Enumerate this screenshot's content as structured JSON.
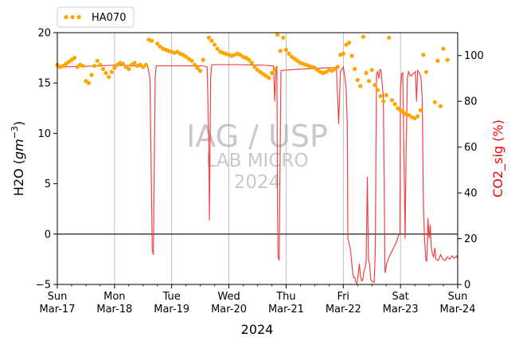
{
  "chart_data": {
    "type": "line",
    "watermark": {
      "line1": "IAG / USP",
      "line2": "LAB MICRO",
      "line3": "2024"
    },
    "xlabel": "2024",
    "x_ticks": [
      {
        "day": "Sun",
        "date": "Mar-17"
      },
      {
        "day": "Mon",
        "date": "Mar-18"
      },
      {
        "day": "Tue",
        "date": "Mar-19"
      },
      {
        "day": "Wed",
        "date": "Mar-20"
      },
      {
        "day": "Thu",
        "date": "Mar-21"
      },
      {
        "day": "Fri",
        "date": "Mar-22"
      },
      {
        "day": "Sat",
        "date": "Mar-23"
      },
      {
        "day": "Sun",
        "date": "Mar-24"
      }
    ],
    "x_range": [
      "2024-03-17",
      "2024-03-24"
    ],
    "grid": "vertical",
    "zero_line": 0,
    "left_axis": {
      "label": "H2O (gm⁻³)",
      "label_main": "H2O (",
      "label_unit": "gm",
      "label_exp": "−3",
      "label_close": ")",
      "ylim": [
        -5,
        20
      ],
      "ticks": [
        "−5",
        "0",
        "5",
        "10",
        "15",
        "20"
      ],
      "color": "#000000"
    },
    "right_axis": {
      "label": "CO2_sig (%)",
      "ylim": [
        0,
        110
      ],
      "ticks": [
        "0",
        "20",
        "40",
        "60",
        "80",
        "100"
      ],
      "color": "#ff0000"
    },
    "legend": {
      "placement": "top-left outside",
      "entries": [
        "HA070"
      ]
    },
    "series": [
      {
        "name": "HA070",
        "axis": "left",
        "style": "dots",
        "color": "#ffa500",
        "points": [
          [
            0.0,
            16.8
          ],
          [
            0.05,
            16.6
          ],
          [
            0.1,
            16.7
          ],
          [
            0.15,
            16.9
          ],
          [
            0.2,
            17.1
          ],
          [
            0.25,
            17.3
          ],
          [
            0.3,
            17.5
          ],
          [
            0.35,
            16.6
          ],
          [
            0.4,
            16.8
          ],
          [
            0.45,
            16.7
          ],
          [
            0.5,
            15.2
          ],
          [
            0.55,
            15.0
          ],
          [
            0.6,
            15.8
          ],
          [
            0.65,
            16.7
          ],
          [
            0.7,
            17.2
          ],
          [
            0.75,
            16.8
          ],
          [
            0.8,
            16.4
          ],
          [
            0.85,
            16.0
          ],
          [
            0.9,
            15.6
          ],
          [
            0.95,
            16.1
          ],
          [
            1.0,
            16.5
          ],
          [
            1.05,
            16.8
          ],
          [
            1.1,
            17.0
          ],
          [
            1.15,
            16.9
          ],
          [
            1.2,
            16.6
          ],
          [
            1.25,
            16.4
          ],
          [
            1.3,
            16.8
          ],
          [
            1.35,
            17.0
          ],
          [
            1.4,
            16.7
          ],
          [
            1.45,
            16.8
          ],
          [
            1.5,
            16.6
          ],
          [
            1.55,
            16.8
          ],
          [
            1.6,
            19.3
          ],
          [
            1.65,
            19.2
          ],
          [
            1.75,
            18.9
          ],
          [
            1.8,
            18.6
          ],
          [
            1.85,
            18.4
          ],
          [
            1.9,
            18.3
          ],
          [
            1.95,
            18.2
          ],
          [
            2.0,
            18.1
          ],
          [
            2.05,
            18.0
          ],
          [
            2.1,
            18.1
          ],
          [
            2.15,
            17.9
          ],
          [
            2.2,
            17.8
          ],
          [
            2.25,
            17.6
          ],
          [
            2.3,
            17.4
          ],
          [
            2.35,
            17.2
          ],
          [
            2.4,
            16.8
          ],
          [
            2.45,
            16.5
          ],
          [
            2.5,
            16.2
          ],
          [
            2.55,
            17.3
          ],
          [
            2.65,
            19.5
          ],
          [
            2.7,
            19.2
          ],
          [
            2.75,
            18.8
          ],
          [
            2.8,
            18.4
          ],
          [
            2.85,
            18.1
          ],
          [
            2.9,
            18.0
          ],
          [
            2.95,
            17.9
          ],
          [
            3.0,
            17.8
          ],
          [
            3.05,
            17.7
          ],
          [
            3.1,
            17.8
          ],
          [
            3.15,
            17.9
          ],
          [
            3.2,
            17.8
          ],
          [
            3.25,
            17.6
          ],
          [
            3.3,
            17.5
          ],
          [
            3.35,
            17.3
          ],
          [
            3.4,
            17.0
          ],
          [
            3.45,
            16.6
          ],
          [
            3.5,
            16.3
          ],
          [
            3.55,
            16.1
          ],
          [
            3.6,
            15.9
          ],
          [
            3.65,
            15.7
          ],
          [
            3.7,
            15.5
          ],
          [
            3.75,
            16.0
          ],
          [
            3.8,
            16.4
          ],
          [
            3.85,
            19.8
          ],
          [
            3.9,
            18.2
          ],
          [
            3.95,
            19.5
          ],
          [
            4.0,
            18.3
          ],
          [
            4.05,
            17.9
          ],
          [
            4.1,
            17.6
          ],
          [
            4.15,
            17.4
          ],
          [
            4.2,
            17.2
          ],
          [
            4.25,
            17.0
          ],
          [
            4.3,
            16.9
          ],
          [
            4.35,
            16.8
          ],
          [
            4.4,
            16.7
          ],
          [
            4.45,
            16.6
          ],
          [
            4.5,
            16.5
          ],
          [
            4.55,
            16.3
          ],
          [
            4.6,
            16.1
          ],
          [
            4.65,
            16.0
          ],
          [
            4.7,
            16.1
          ],
          [
            4.75,
            16.3
          ],
          [
            4.8,
            16.2
          ],
          [
            4.85,
            16.4
          ],
          [
            4.9,
            16.6
          ],
          [
            4.95,
            17.8
          ],
          [
            5.0,
            17.9
          ],
          [
            5.05,
            18.8
          ],
          [
            5.1,
            19.0
          ],
          [
            5.15,
            17.7
          ],
          [
            5.2,
            16.4
          ],
          [
            5.25,
            15.3
          ],
          [
            5.3,
            14.7
          ],
          [
            5.35,
            19.6
          ],
          [
            5.4,
            16.0
          ],
          [
            5.45,
            15.2
          ],
          [
            5.5,
            16.3
          ],
          [
            5.55,
            14.8
          ],
          [
            5.6,
            14.3
          ],
          [
            5.65,
            13.7
          ],
          [
            5.7,
            13.2
          ],
          [
            5.75,
            13.8
          ],
          [
            5.8,
            19.5
          ],
          [
            5.85,
            13.3
          ],
          [
            5.9,
            12.9
          ],
          [
            5.95,
            12.5
          ],
          [
            6.0,
            12.3
          ],
          [
            6.05,
            12.1
          ],
          [
            6.1,
            11.9
          ],
          [
            6.15,
            11.8
          ],
          [
            6.2,
            11.6
          ],
          [
            6.25,
            11.5
          ],
          [
            6.3,
            11.7
          ],
          [
            6.35,
            12.3
          ],
          [
            6.4,
            17.8
          ],
          [
            6.45,
            16.1
          ],
          [
            6.6,
            13.1
          ],
          [
            6.65,
            17.2
          ],
          [
            6.7,
            12.7
          ],
          [
            6.75,
            18.4
          ],
          [
            6.82,
            17.3
          ]
        ]
      },
      {
        "name": "CO2_sig",
        "axis": "right",
        "style": "line",
        "color": "#ee3030",
        "points": [
          [
            0.0,
            95.0
          ],
          [
            0.5,
            95.3
          ],
          [
            1.0,
            95.8
          ],
          [
            1.3,
            95.6
          ],
          [
            1.58,
            95.3
          ],
          [
            1.62,
            90.0
          ],
          [
            1.66,
            15.0
          ],
          [
            1.68,
            13.0
          ],
          [
            1.71,
            90.0
          ],
          [
            1.73,
            95.5
          ],
          [
            2.0,
            95.5
          ],
          [
            2.4,
            95.5
          ],
          [
            2.55,
            95.5
          ],
          [
            2.62,
            95.0
          ],
          [
            2.65,
            60.0
          ],
          [
            2.66,
            28.0
          ],
          [
            2.68,
            90.0
          ],
          [
            2.7,
            96.0
          ],
          [
            3.2,
            96.0
          ],
          [
            3.6,
            95.8
          ],
          [
            3.78,
            95.5
          ],
          [
            3.8,
            80.0
          ],
          [
            3.82,
            93.0
          ],
          [
            3.84,
            95.5
          ],
          [
            3.85,
            35.0
          ],
          [
            3.86,
            12.0
          ],
          [
            3.88,
            10.5
          ],
          [
            3.89,
            40.0
          ],
          [
            3.91,
            93.5
          ],
          [
            4.2,
            94.0
          ],
          [
            4.6,
            94.5
          ],
          [
            4.88,
            94.8
          ],
          [
            4.92,
            70.0
          ],
          [
            4.95,
            93.0
          ],
          [
            5.0,
            95.0
          ],
          [
            5.03,
            90.0
          ],
          [
            5.05,
            85.0
          ],
          [
            5.07,
            70.0
          ],
          [
            5.08,
            20.0
          ],
          [
            5.1,
            18.0
          ],
          [
            5.12,
            16.0
          ],
          [
            5.14,
            12.0
          ],
          [
            5.16,
            6.0
          ],
          [
            5.18,
            3.0
          ],
          [
            5.2,
            3.0
          ],
          [
            5.22,
            1.0
          ],
          [
            5.24,
            0.5
          ],
          [
            5.26,
            4.0
          ],
          [
            5.28,
            9.0
          ],
          [
            5.3,
            4.0
          ],
          [
            5.32,
            1.5
          ],
          [
            5.34,
            2.0
          ],
          [
            5.36,
            6.0
          ],
          [
            5.38,
            7.0
          ],
          [
            5.4,
            10.5
          ],
          [
            5.42,
            47.0
          ],
          [
            5.44,
            11.0
          ],
          [
            5.46,
            9.0
          ],
          [
            5.48,
            2.0
          ],
          [
            5.5,
            1.5
          ],
          [
            5.52,
            1.0
          ],
          [
            5.54,
            1.0
          ],
          [
            5.56,
            15.0
          ],
          [
            5.58,
            92.0
          ],
          [
            5.6,
            93.0
          ],
          [
            5.62,
            90.0
          ],
          [
            5.64,
            94.0
          ],
          [
            5.66,
            93.5
          ],
          [
            5.7,
            82.0
          ],
          [
            5.73,
            5.0
          ],
          [
            5.76,
            9.0
          ],
          [
            5.8,
            12.0
          ],
          [
            5.84,
            14.0
          ],
          [
            5.88,
            16.0
          ],
          [
            5.92,
            18.0
          ],
          [
            5.96,
            21.0
          ],
          [
            5.99,
            22.0
          ],
          [
            6.0,
            85.0
          ],
          [
            6.02,
            92.0
          ],
          [
            6.04,
            92.5
          ],
          [
            6.08,
            20.0
          ],
          [
            6.1,
            60.0
          ],
          [
            6.12,
            90.0
          ],
          [
            6.14,
            93.0
          ],
          [
            6.18,
            91.0
          ],
          [
            6.22,
            92.0
          ],
          [
            6.26,
            93.0
          ],
          [
            6.28,
            80.0
          ],
          [
            6.3,
            93.5
          ],
          [
            6.34,
            92.0
          ],
          [
            6.36,
            90.0
          ],
          [
            6.38,
            82.0
          ],
          [
            6.4,
            35.0
          ],
          [
            6.42,
            20.0
          ],
          [
            6.44,
            11.0
          ],
          [
            6.46,
            10.0
          ],
          [
            6.48,
            29.0
          ],
          [
            6.5,
            20.0
          ],
          [
            6.52,
            26.0
          ],
          [
            6.54,
            16.0
          ],
          [
            6.56,
            13.0
          ],
          [
            6.58,
            12.0
          ],
          [
            6.6,
            16.0
          ],
          [
            6.62,
            11.0
          ],
          [
            6.66,
            10.5
          ],
          [
            6.7,
            13.0
          ],
          [
            6.74,
            11.0
          ],
          [
            6.78,
            10.5
          ],
          [
            6.82,
            12.0
          ],
          [
            6.86,
            11.0
          ],
          [
            6.9,
            12.5
          ],
          [
            6.94,
            11.5
          ],
          [
            6.98,
            12.5
          ],
          [
            7.0,
            11.0
          ]
        ]
      }
    ]
  }
}
